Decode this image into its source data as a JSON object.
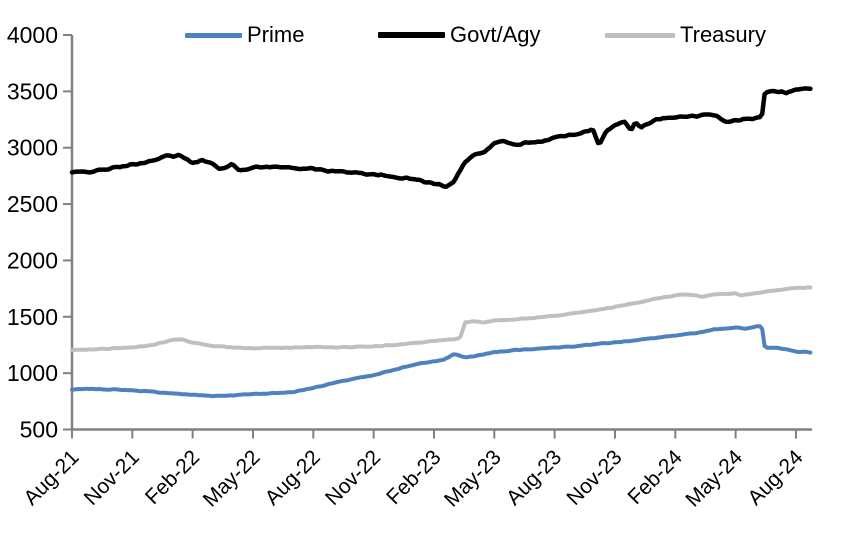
{
  "chart_data": {
    "type": "line",
    "title": "",
    "xlabel": "",
    "ylabel": "",
    "grid": false,
    "axis_color": "#808080",
    "text_color": "#000000",
    "x_axis": {
      "tick_labels": [
        "Aug-21",
        "Nov-21",
        "Feb-22",
        "May-22",
        "Aug-22",
        "Nov-22",
        "Feb-23",
        "May-23",
        "Aug-23",
        "Nov-23",
        "Feb-24",
        "May-24",
        "Aug-24"
      ],
      "unit": "months-since-Aug-2021",
      "range_months": [
        0,
        36.8
      ]
    },
    "y_axis": {
      "ticks": [
        4000,
        3500,
        3000,
        2500,
        2000,
        1500,
        1000,
        500
      ],
      "ylim": [
        500,
        4000
      ]
    },
    "legend": {
      "position": "top",
      "items": [
        {
          "label": "Prime",
          "color": "#4f81bd"
        },
        {
          "label": "Govt/Agy",
          "color": "#000000"
        },
        {
          "label": "Treasury",
          "color": "#bfbfbf"
        }
      ]
    },
    "series": [
      {
        "name": "Prime",
        "color": "#4f81bd",
        "points": [
          [
            0,
            855
          ],
          [
            1,
            860
          ],
          [
            2,
            855
          ],
          [
            3,
            848
          ],
          [
            4,
            835
          ],
          [
            5,
            820
          ],
          [
            6,
            808
          ],
          [
            7,
            798
          ],
          [
            8,
            803
          ],
          [
            9,
            815
          ],
          [
            10,
            822
          ],
          [
            11,
            832
          ],
          [
            12,
            870
          ],
          [
            13,
            912
          ],
          [
            14,
            950
          ],
          [
            15,
            980
          ],
          [
            16,
            1030
          ],
          [
            17,
            1075
          ],
          [
            18,
            1105
          ],
          [
            18.5,
            1120
          ],
          [
            19,
            1170
          ],
          [
            19.5,
            1140
          ],
          [
            20,
            1150
          ],
          [
            21,
            1185
          ],
          [
            22,
            1205
          ],
          [
            23,
            1215
          ],
          [
            24,
            1228
          ],
          [
            25,
            1240
          ],
          [
            26,
            1258
          ],
          [
            27,
            1272
          ],
          [
            28,
            1292
          ],
          [
            29,
            1312
          ],
          [
            30,
            1332
          ],
          [
            31,
            1355
          ],
          [
            32,
            1390
          ],
          [
            33,
            1405
          ],
          [
            33.5,
            1392
          ],
          [
            34,
            1415
          ],
          [
            34.3,
            1420
          ],
          [
            34.45,
            1230
          ],
          [
            35,
            1225
          ],
          [
            36,
            1192
          ],
          [
            36.8,
            1185
          ]
        ]
      },
      {
        "name": "Govt/Agy",
        "color": "#000000",
        "points": [
          [
            0,
            2780
          ],
          [
            1,
            2790
          ],
          [
            2,
            2818
          ],
          [
            3,
            2848
          ],
          [
            4,
            2885
          ],
          [
            4.7,
            2930
          ],
          [
            5,
            2918
          ],
          [
            5.3,
            2935
          ],
          [
            6,
            2870
          ],
          [
            6.5,
            2890
          ],
          [
            7,
            2855
          ],
          [
            7.3,
            2810
          ],
          [
            8,
            2850
          ],
          [
            8.3,
            2800
          ],
          [
            9,
            2825
          ],
          [
            10,
            2832
          ],
          [
            11,
            2820
          ],
          [
            12,
            2812
          ],
          [
            13,
            2790
          ],
          [
            14,
            2782
          ],
          [
            15,
            2762
          ],
          [
            16,
            2740
          ],
          [
            17,
            2722
          ],
          [
            18,
            2680
          ],
          [
            18.6,
            2660
          ],
          [
            19,
            2700
          ],
          [
            19.5,
            2870
          ],
          [
            20,
            2940
          ],
          [
            20.5,
            2960
          ],
          [
            21,
            3040
          ],
          [
            21.5,
            3060
          ],
          [
            22,
            3020
          ],
          [
            22.5,
            3045
          ],
          [
            23,
            3040
          ],
          [
            24,
            3090
          ],
          [
            25,
            3120
          ],
          [
            25.9,
            3165
          ],
          [
            26.2,
            3030
          ],
          [
            26.6,
            3150
          ],
          [
            27,
            3200
          ],
          [
            27.5,
            3230
          ],
          [
            27.8,
            3160
          ],
          [
            28,
            3230
          ],
          [
            28.3,
            3180
          ],
          [
            29,
            3250
          ],
          [
            30,
            3270
          ],
          [
            31,
            3280
          ],
          [
            31.5,
            3300
          ],
          [
            32,
            3290
          ],
          [
            32.5,
            3230
          ],
          [
            33,
            3240
          ],
          [
            34,
            3262
          ],
          [
            34.3,
            3268
          ],
          [
            34.45,
            3490
          ],
          [
            35,
            3500
          ],
          [
            35.5,
            3490
          ],
          [
            36,
            3515
          ],
          [
            36.8,
            3530
          ]
        ]
      },
      {
        "name": "Treasury",
        "color": "#bfbfbf",
        "points": [
          [
            0,
            1205
          ],
          [
            1,
            1210
          ],
          [
            2,
            1218
          ],
          [
            3,
            1228
          ],
          [
            4,
            1248
          ],
          [
            5,
            1295
          ],
          [
            5.5,
            1300
          ],
          [
            6,
            1268
          ],
          [
            7,
            1242
          ],
          [
            8,
            1230
          ],
          [
            9,
            1222
          ],
          [
            10,
            1225
          ],
          [
            11,
            1228
          ],
          [
            12,
            1232
          ],
          [
            13,
            1228
          ],
          [
            14,
            1232
          ],
          [
            15,
            1238
          ],
          [
            16,
            1248
          ],
          [
            17,
            1268
          ],
          [
            18,
            1285
          ],
          [
            19,
            1302
          ],
          [
            19.3,
            1310
          ],
          [
            19.55,
            1450
          ],
          [
            20,
            1460
          ],
          [
            20.5,
            1450
          ],
          [
            21,
            1468
          ],
          [
            22,
            1478
          ],
          [
            23,
            1490
          ],
          [
            24,
            1510
          ],
          [
            25,
            1532
          ],
          [
            26,
            1558
          ],
          [
            27,
            1588
          ],
          [
            28,
            1620
          ],
          [
            29,
            1658
          ],
          [
            30,
            1690
          ],
          [
            30.5,
            1700
          ],
          [
            31,
            1690
          ],
          [
            31.3,
            1675
          ],
          [
            32,
            1700
          ],
          [
            33,
            1705
          ],
          [
            33.3,
            1690
          ],
          [
            34,
            1712
          ],
          [
            35,
            1735
          ],
          [
            36,
            1755
          ],
          [
            36.8,
            1762
          ]
        ]
      }
    ]
  }
}
